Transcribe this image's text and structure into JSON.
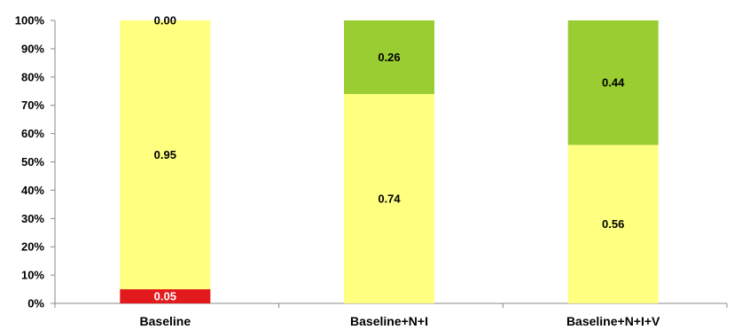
{
  "chart_data": {
    "type": "bar",
    "stacked": true,
    "percent_stacked": true,
    "categories": [
      "Baseline",
      "Baseline+N+I",
      "Baseline+N+I+V"
    ],
    "series": [
      {
        "values": [
          0.05,
          0.0,
          0.0
        ],
        "labels": [
          "0.05",
          "",
          ""
        ],
        "color": "#e31a1c",
        "label_color": "#ffffff"
      },
      {
        "values": [
          0.95,
          0.74,
          0.56
        ],
        "labels": [
          "0.95",
          "0.74",
          "0.56"
        ],
        "color": "#ffff80",
        "label_color": "#000000"
      },
      {
        "values": [
          0.0,
          0.26,
          0.44
        ],
        "labels": [
          "0.00",
          "0.26",
          "0.44"
        ],
        "color": "#9acd32",
        "label_color": "#000000"
      }
    ],
    "yticks": [
      "0%",
      "10%",
      "20%",
      "30%",
      "40%",
      "50%",
      "60%",
      "70%",
      "80%",
      "90%",
      "100%"
    ],
    "ylim": [
      0,
      1
    ],
    "grid": false,
    "legend": "none"
  }
}
